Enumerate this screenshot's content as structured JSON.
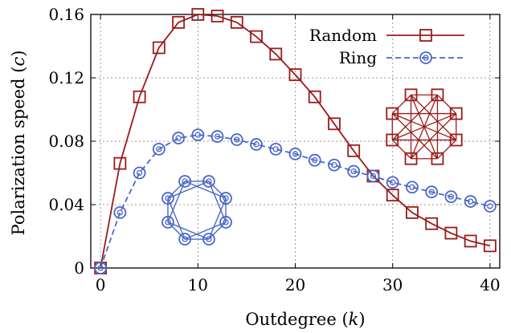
{
  "chart_data": {
    "type": "line",
    "xlabel": "Outdegree",
    "xlabel_var": "k",
    "ylabel": "Polarization speed",
    "ylabel_var": "c",
    "xlim": [
      -1,
      41
    ],
    "ylim": [
      0,
      0.16
    ],
    "xticks": [
      0,
      10,
      20,
      30,
      40
    ],
    "xtick_labels": [
      "0",
      "10",
      "20",
      "30",
      "40"
    ],
    "yticks": [
      0,
      0.04,
      0.08,
      0.12,
      0.16
    ],
    "ytick_labels": [
      "0",
      "0.04",
      "0.08",
      "0.12",
      "0.16"
    ],
    "grid": true,
    "legend_position": "top-right",
    "series": [
      {
        "name": "Random",
        "color": "#9b1b1b",
        "marker": "square",
        "line": "solid",
        "x": [
          0,
          2,
          4,
          6,
          8,
          10,
          12,
          14,
          16,
          18,
          20,
          22,
          24,
          26,
          28,
          30,
          32,
          34,
          36,
          38,
          40
        ],
        "y": [
          0,
          0.066,
          0.108,
          0.139,
          0.155,
          0.16,
          0.159,
          0.155,
          0.146,
          0.135,
          0.122,
          0.108,
          0.091,
          0.074,
          0.058,
          0.046,
          0.035,
          0.028,
          0.022,
          0.017,
          0.014
        ]
      },
      {
        "name": "Ring",
        "color": "#4a68c8",
        "marker": "circle",
        "line": "dashed",
        "x": [
          0,
          2,
          4,
          6,
          8,
          10,
          12,
          14,
          16,
          18,
          20,
          22,
          24,
          26,
          28,
          30,
          32,
          34,
          36,
          38,
          40
        ],
        "y": [
          0,
          0.035,
          0.06,
          0.075,
          0.082,
          0.084,
          0.083,
          0.081,
          0.078,
          0.075,
          0.072,
          0.068,
          0.065,
          0.061,
          0.058,
          0.054,
          0.051,
          0.048,
          0.045,
          0.042,
          0.039
        ]
      }
    ]
  }
}
